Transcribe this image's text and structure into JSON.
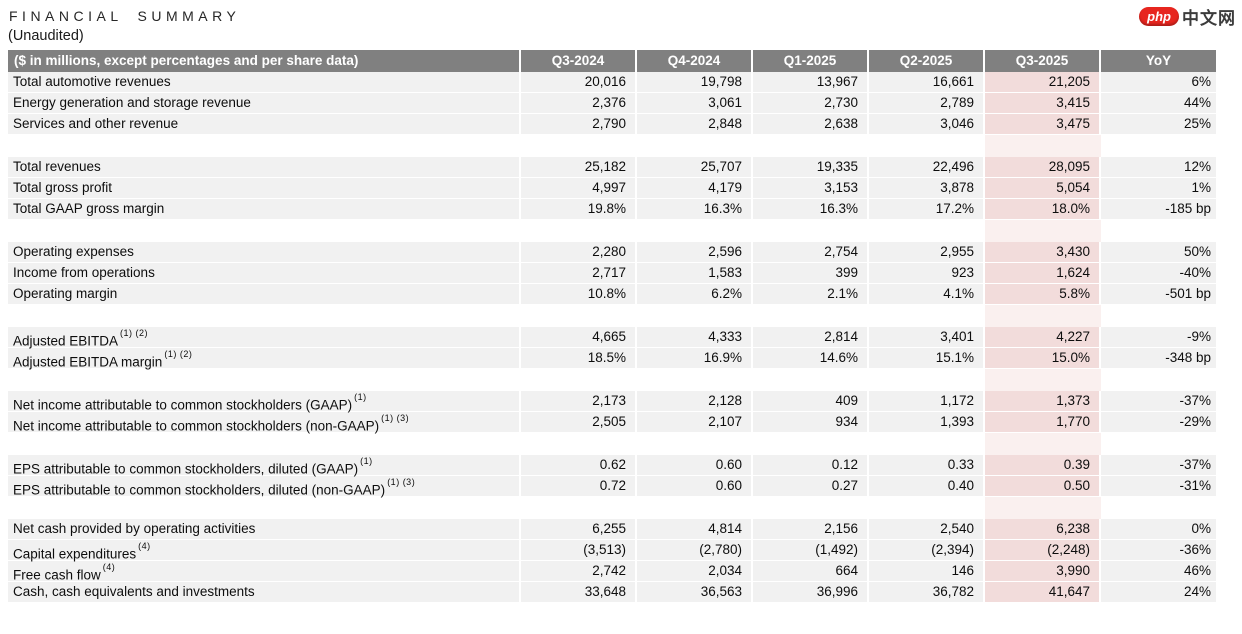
{
  "page": {
    "title": "FINANCIAL SUMMARY",
    "subtitle": "(Unaudited)"
  },
  "logo": {
    "badge": "php",
    "text": "中文网"
  },
  "colors": {
    "header_bg": "#808080",
    "header_text": "#ffffff",
    "row_bg": "#f1f1f1",
    "highlight_bg": "#f2dcdb",
    "highlight_gap_bg": "#faf0ef",
    "logo_red": "#e7261f"
  },
  "table": {
    "label_header": "($ in millions, except percentages and per share data)",
    "columns": [
      "Q3-2024",
      "Q4-2024",
      "Q1-2025",
      "Q2-2025",
      "Q3-2025",
      "YoY"
    ],
    "highlight_column": "Q3-2025",
    "sections": [
      {
        "rows": [
          {
            "label": "Total automotive revenues",
            "values": [
              "20,016",
              "19,798",
              "13,967",
              "16,661",
              "21,205",
              "6%"
            ]
          },
          {
            "label": "Energy generation and storage revenue",
            "values": [
              "2,376",
              "3,061",
              "2,730",
              "2,789",
              "3,415",
              "44%"
            ]
          },
          {
            "label": "Services and other revenue",
            "values": [
              "2,790",
              "2,848",
              "2,638",
              "3,046",
              "3,475",
              "25%"
            ]
          }
        ]
      },
      {
        "rows": [
          {
            "label": "Total revenues",
            "values": [
              "25,182",
              "25,707",
              "19,335",
              "22,496",
              "28,095",
              "12%"
            ]
          },
          {
            "label": "Total gross profit",
            "values": [
              "4,997",
              "4,179",
              "3,153",
              "3,878",
              "5,054",
              "1%"
            ]
          },
          {
            "label": "Total GAAP gross margin",
            "values": [
              "19.8%",
              "16.3%",
              "16.3%",
              "17.2%",
              "18.0%",
              "-185 bp"
            ]
          }
        ]
      },
      {
        "rows": [
          {
            "label": "Operating expenses",
            "values": [
              "2,280",
              "2,596",
              "2,754",
              "2,955",
              "3,430",
              "50%"
            ]
          },
          {
            "label": "Income from operations",
            "values": [
              "2,717",
              "1,583",
              "399",
              "923",
              "1,624",
              "-40%"
            ]
          },
          {
            "label": "Operating margin",
            "values": [
              "10.8%",
              "6.2%",
              "2.1%",
              "4.1%",
              "5.8%",
              "-501 bp"
            ]
          }
        ]
      },
      {
        "rows": [
          {
            "label": "Adjusted EBITDA",
            "sup": "(1) (2)",
            "values": [
              "4,665",
              "4,333",
              "2,814",
              "3,401",
              "4,227",
              "-9%"
            ]
          },
          {
            "label": "Adjusted EBITDA margin",
            "sup": "(1) (2)",
            "values": [
              "18.5%",
              "16.9%",
              "14.6%",
              "15.1%",
              "15.0%",
              "-348 bp"
            ]
          }
        ]
      },
      {
        "rows": [
          {
            "label": "Net income attributable to common stockholders (GAAP)",
            "sup": "(1)",
            "values": [
              "2,173",
              "2,128",
              "409",
              "1,172",
              "1,373",
              "-37%"
            ]
          },
          {
            "label": "Net income attributable to common stockholders (non-GAAP)",
            "sup": "(1) (3)",
            "values": [
              "2,505",
              "2,107",
              "934",
              "1,393",
              "1,770",
              "-29%"
            ]
          }
        ]
      },
      {
        "rows": [
          {
            "label": "EPS attributable to common stockholders, diluted (GAAP)",
            "sup": "(1)",
            "values": [
              "0.62",
              "0.60",
              "0.12",
              "0.33",
              "0.39",
              "-37%"
            ]
          },
          {
            "label": "EPS attributable to common stockholders, diluted (non-GAAP)",
            "sup": "(1) (3)",
            "values": [
              "0.72",
              "0.60",
              "0.27",
              "0.40",
              "0.50",
              "-31%"
            ]
          }
        ]
      },
      {
        "rows": [
          {
            "label": "Net cash provided by operating activities",
            "values": [
              "6,255",
              "4,814",
              "2,156",
              "2,540",
              "6,238",
              "0%"
            ]
          },
          {
            "label": "Capital expenditures",
            "sup": "(4)",
            "values": [
              "(3,513)",
              "(2,780)",
              "(1,492)",
              "(2,394)",
              "(2,248)",
              "-36%"
            ]
          },
          {
            "label": "Free cash flow",
            "sup": "(4)",
            "values": [
              "2,742",
              "2,034",
              "664",
              "146",
              "3,990",
              "46%"
            ]
          },
          {
            "label": "Cash, cash equivalents and investments",
            "values": [
              "33,648",
              "36,563",
              "36,996",
              "36,782",
              "41,647",
              "24%"
            ]
          }
        ]
      }
    ]
  }
}
